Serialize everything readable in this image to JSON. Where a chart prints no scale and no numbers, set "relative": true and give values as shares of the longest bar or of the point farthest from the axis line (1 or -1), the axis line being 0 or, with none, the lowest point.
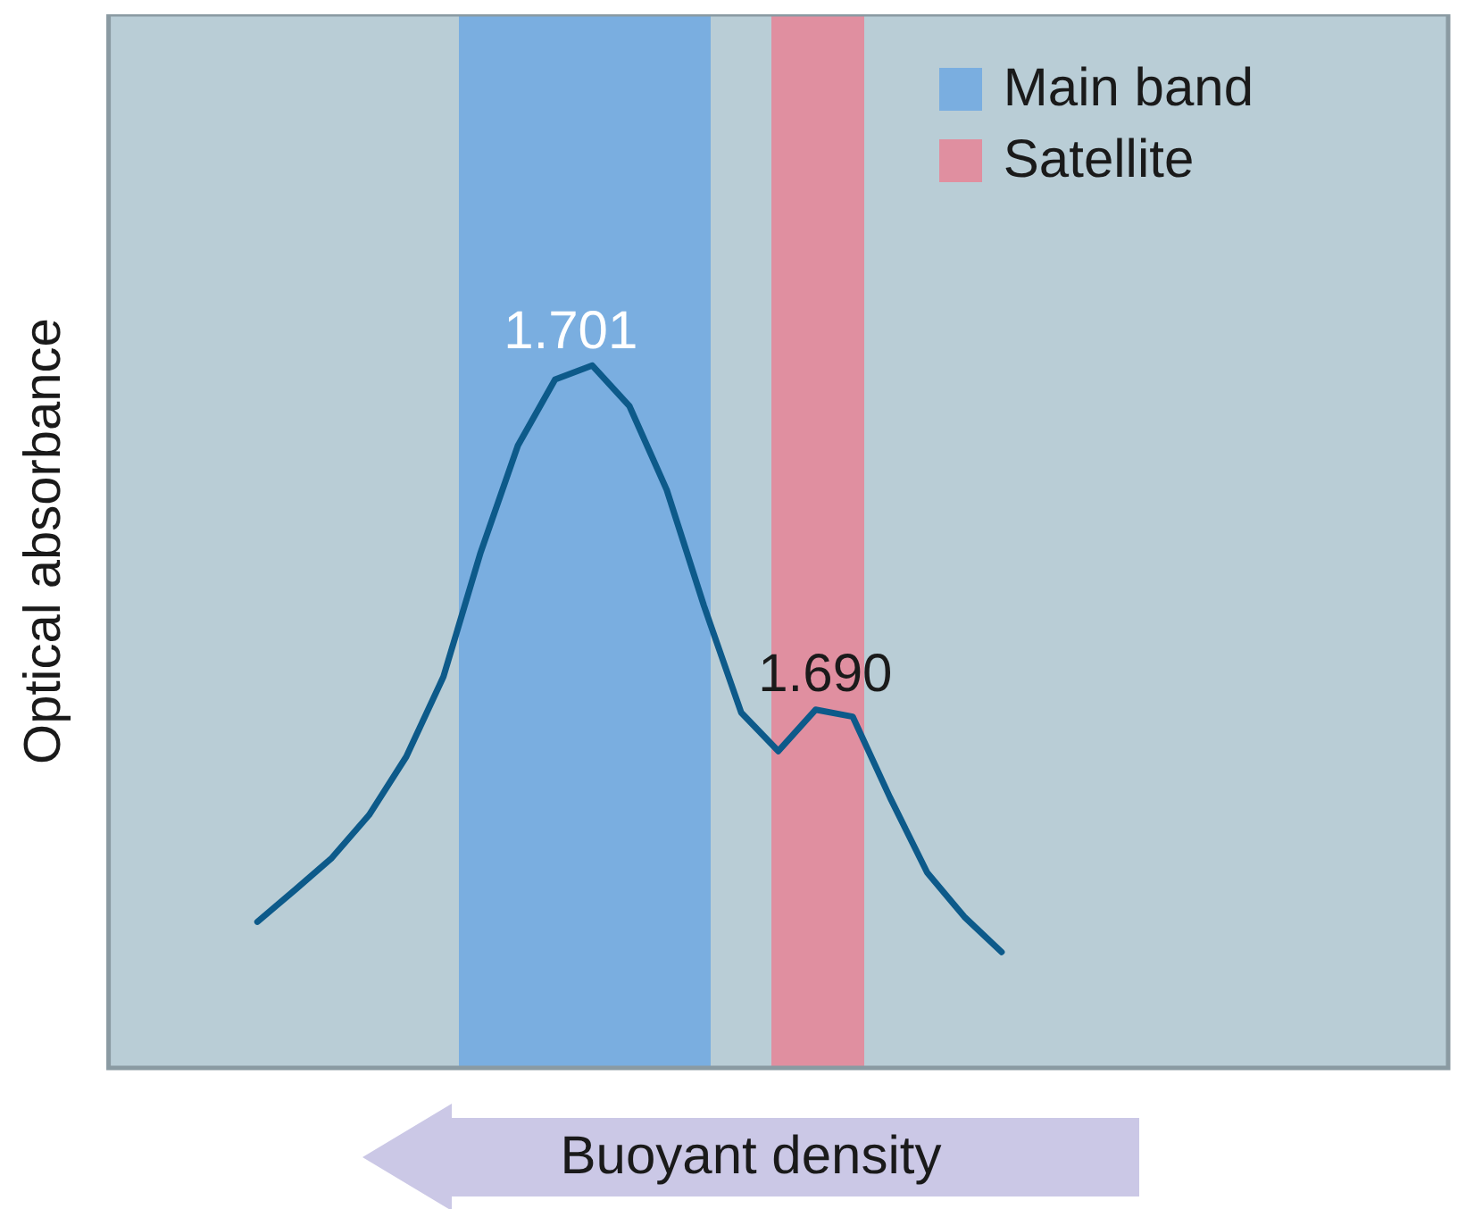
{
  "chart_data": {
    "type": "line",
    "relative": true,
    "ylabel": "Optical absorbance",
    "xlabel": "Buoyant density",
    "marker": "none",
    "line_style": "solid",
    "categories": [
      null,
      null,
      null,
      null,
      null,
      null,
      null,
      null,
      null,
      null,
      null,
      null,
      null,
      null,
      null,
      null,
      null,
      null,
      null,
      null,
      null,
      null,
      null,
      null,
      null,
      null,
      null,
      null,
      null,
      null,
      null,
      null,
      null,
      null,
      null,
      null,
      null
    ],
    "series": [
      {
        "color": "#0d5a8a",
        "values": [
          null,
          null,
          null,
          null,
          0.208,
          0.253,
          0.299,
          0.36,
          0.443,
          0.557,
          0.734,
          0.886,
          0.98,
          1,
          0.942,
          0.823,
          0.658,
          0.506,
          0.451,
          0.51,
          0.5,
          0.385,
          0.278,
          0.215,
          0.165,
          null,
          null,
          null,
          null,
          null,
          null,
          null,
          null,
          null,
          null,
          null,
          null
        ]
      }
    ],
    "annotations": [
      "1.701",
      "1.690",
      "Main band",
      "Satellite"
    ]
  }
}
